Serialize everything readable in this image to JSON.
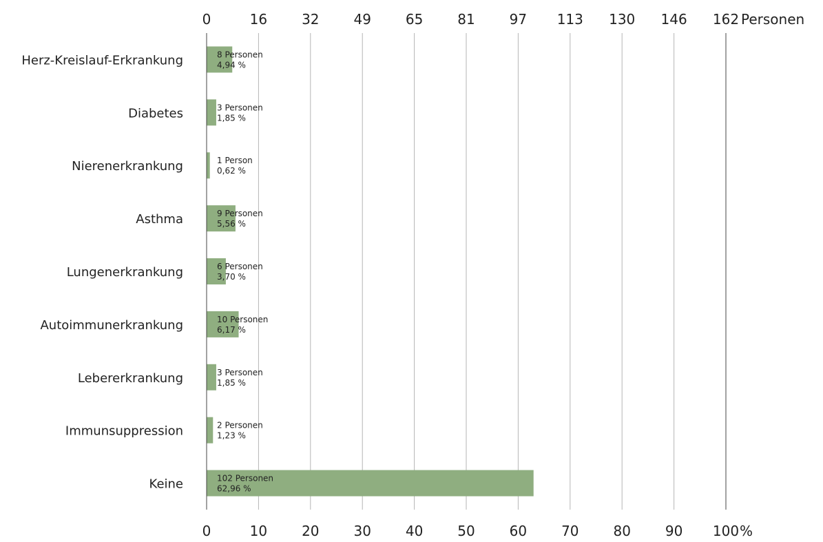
{
  "chart_data": {
    "type": "bar",
    "orientation": "horizontal",
    "categories": [
      "Herz-Kreislauf-Erkrankung",
      "Diabetes",
      "Nierenerkrankung",
      "Asthma",
      "Lungenerkrankung",
      "Autoimmunerkrankung",
      "Lebererkrankung",
      "Immunsuppression",
      "Keine"
    ],
    "counts": [
      8,
      3,
      1,
      9,
      6,
      10,
      3,
      2,
      102
    ],
    "values": [
      4.94,
      1.85,
      0.62,
      5.56,
      3.7,
      6.17,
      1.85,
      1.23,
      62.96
    ],
    "count_labels": [
      "8 Personen",
      "3 Personen",
      "1 Person",
      "9 Personen",
      "6 Personen",
      "10 Personen",
      "3 Personen",
      "2 Personen",
      "102 Personen"
    ],
    "percent_labels": [
      "4,94 %",
      "1,85 %",
      "0,62 %",
      "5,56 %",
      "3,70 %",
      "6,17 %",
      "1,85 %",
      "1,23 %",
      "62,96 %"
    ],
    "xlim": [
      0,
      100
    ],
    "bottom_ticks": [
      "0",
      "10",
      "20",
      "30",
      "40",
      "50",
      "60",
      "70",
      "80",
      "90",
      "100"
    ],
    "bottom_unit": "%",
    "top_ticks": [
      "0",
      "16",
      "32",
      "49",
      "65",
      "81",
      "97",
      "113",
      "130",
      "146",
      "162"
    ],
    "top_unit": "Personen",
    "grid": true,
    "bar_color": "#8fae80"
  }
}
